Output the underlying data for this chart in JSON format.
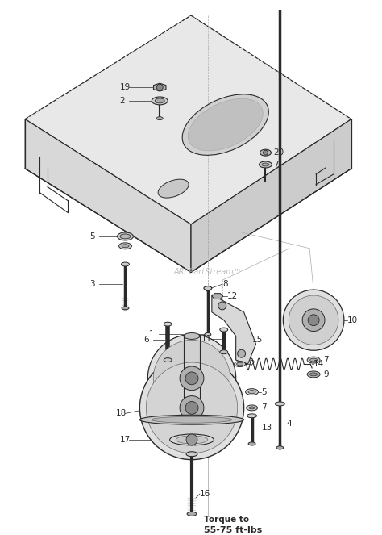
{
  "bg_color": "#ffffff",
  "watermark": "ARI PartStream™",
  "dark": "#2a2a2a",
  "mid": "#666666",
  "light": "#aaaaaa",
  "plate_color": "#e8e8e8",
  "plate_edge": "#333333"
}
